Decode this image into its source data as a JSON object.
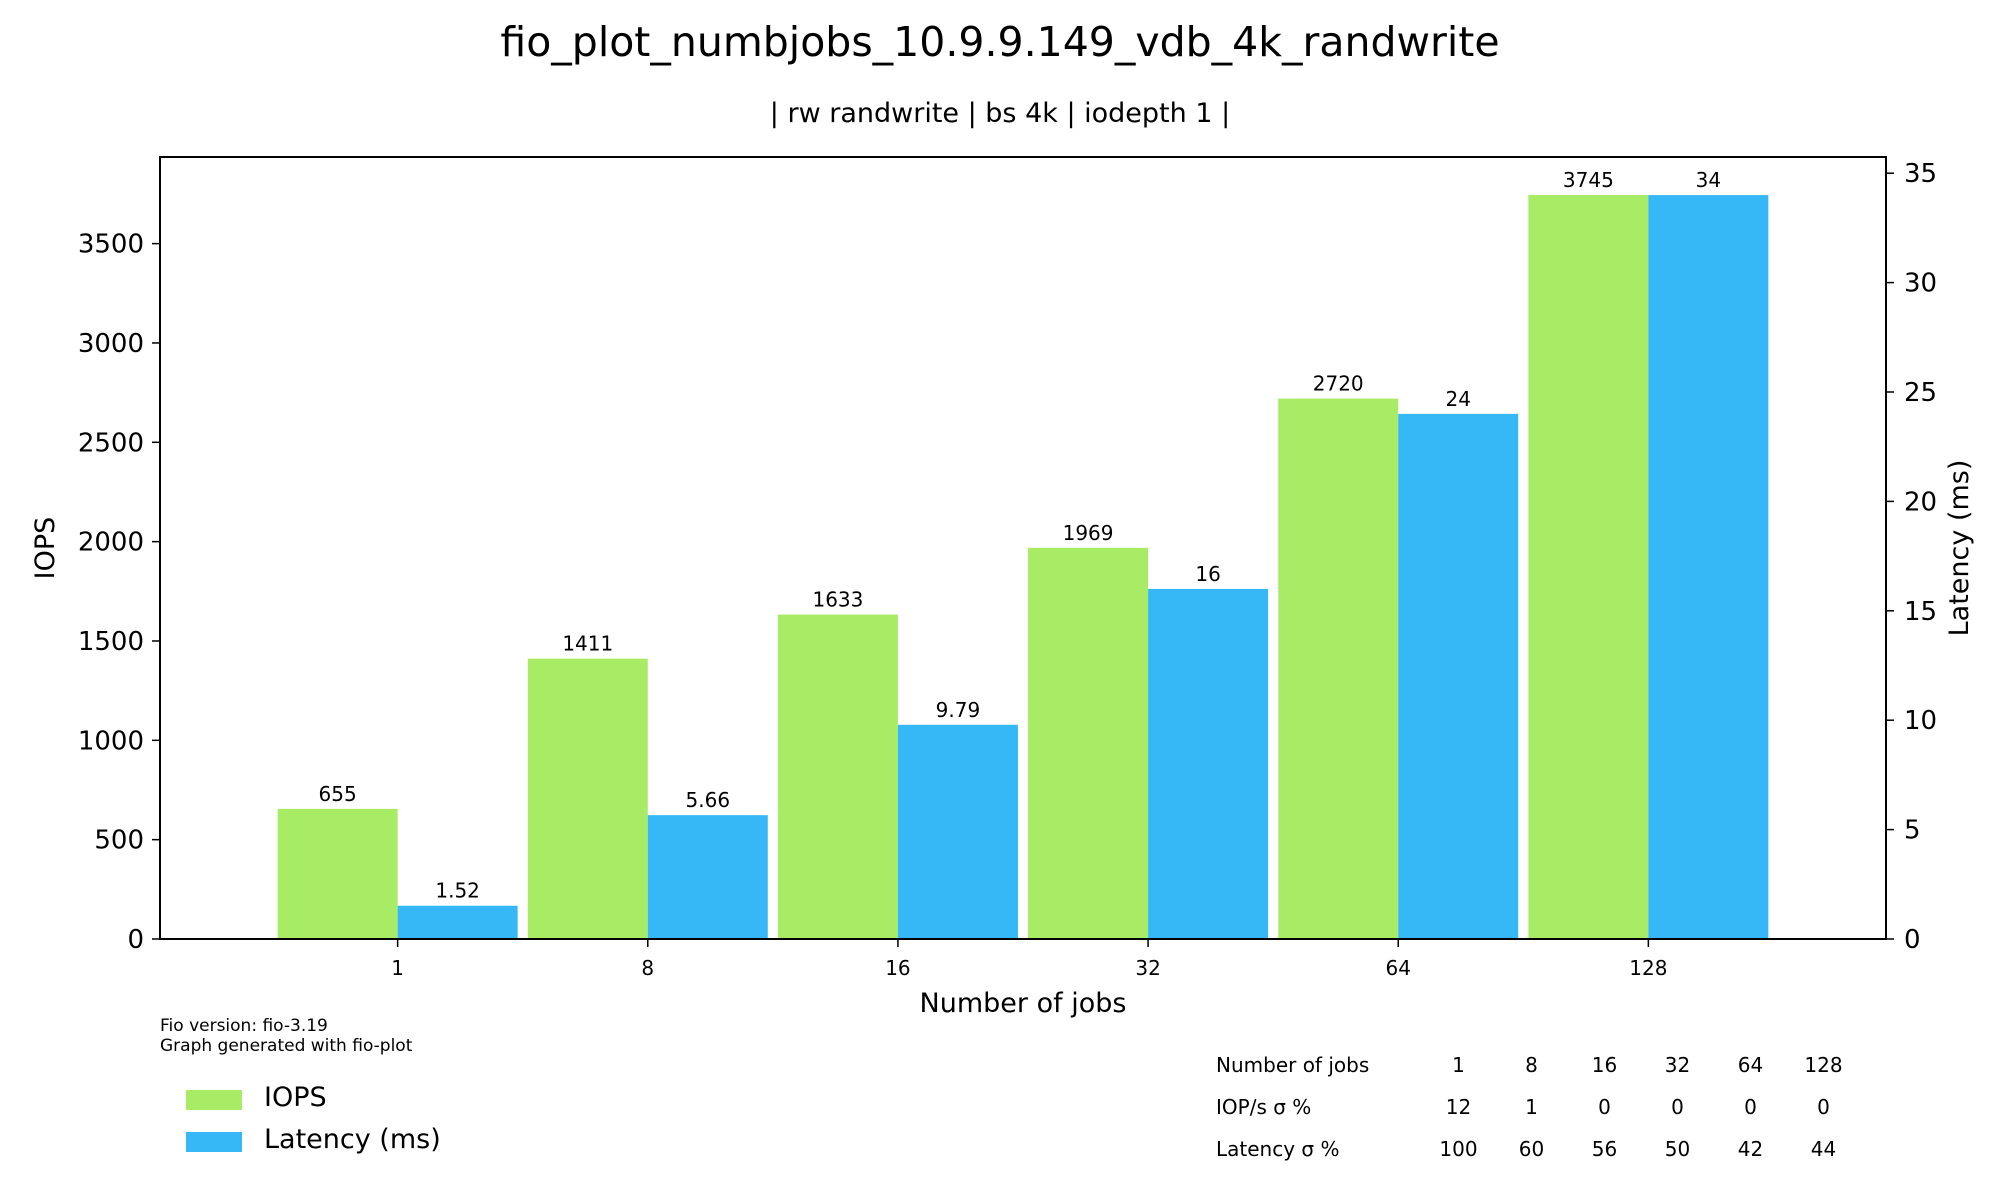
{
  "title": "fio_plot_numbjobs_10.9.9.149_vdb_4k_randwrite",
  "subtitle": "| rw randwrite | bs 4k | iodepth 1 |",
  "footnote": {
    "line1": "Fio version: fio-3.19",
    "line2": "Graph generated with fio-plot"
  },
  "colors": {
    "iops": "#a8eb64",
    "latency": "#36b8f7"
  },
  "chart_data": {
    "type": "bar",
    "title": "fio_plot_numbjobs_10.9.9.149_vdb_4k_randwrite",
    "subtitle": "| rw randwrite | bs 4k | iodepth 1 |",
    "xlabel": "Number of jobs",
    "ylabel": "IOPS",
    "y2label": "Latency (ms)",
    "categories": [
      "1",
      "8",
      "16",
      "32",
      "64",
      "128"
    ],
    "series": [
      {
        "name": "IOPS",
        "axis": "left",
        "values": [
          655,
          1411,
          1633,
          1969,
          2720,
          3745
        ],
        "labels": [
          "655",
          "1411",
          "1633",
          "1969",
          "2720",
          "3745"
        ]
      },
      {
        "name": "Latency (ms)",
        "axis": "right",
        "values": [
          1.52,
          5.66,
          9.79,
          16,
          24,
          34
        ],
        "labels": [
          "1.52",
          "5.66",
          "9.79",
          "16",
          "24",
          "34"
        ]
      }
    ],
    "ylim": [
      0,
      3936
    ],
    "y2lim": [
      0,
      35.74
    ],
    "yticks": [
      0,
      500,
      1000,
      1500,
      2000,
      2500,
      3000,
      3500
    ],
    "y2ticks": [
      0,
      5,
      10,
      15,
      20,
      25,
      30,
      35
    ],
    "legend": "bottom-left",
    "grid": false
  },
  "stats_table": {
    "rows": [
      {
        "label": "Number of jobs",
        "values": [
          "1",
          "8",
          "16",
          "32",
          "64",
          "128"
        ]
      },
      {
        "label": "IOP/s σ %",
        "values": [
          "12",
          "1",
          "0",
          "0",
          "0",
          "0"
        ]
      },
      {
        "label": "Latency σ %",
        "values": [
          "100",
          "60",
          "56",
          "50",
          "42",
          "44"
        ]
      }
    ]
  }
}
